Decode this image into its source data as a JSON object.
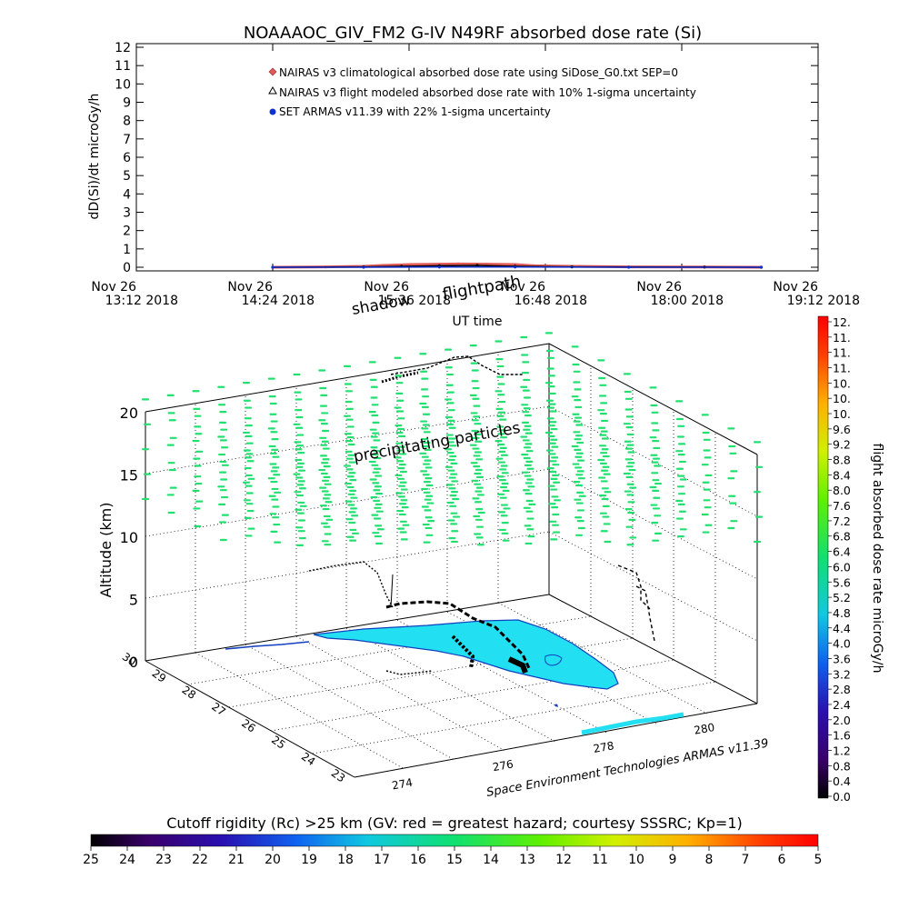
{
  "header": {
    "title": "NOAAAOC_GIV_FM2 G-IV    N49RF  absorbed dose rate (Si)"
  },
  "legend": [
    {
      "label": "NAIRAS v3 climatological absorbed dose rate using SiDose_G0.txt SEP=0",
      "symbol": "diamond",
      "color": "#e05a5a"
    },
    {
      "label": "NAIRAS v3 flight modeled absorbed dose rate with 10% 1-sigma uncertainty",
      "symbol": "triangle",
      "color": "#000000"
    },
    {
      "label": "SET ARMAS v11.39 with 22% 1-sigma uncertainty",
      "symbol": "dot",
      "color": "#1030d0"
    }
  ],
  "labels": {
    "shadow": "shadow",
    "flightpath": "flightpath",
    "precip": "precipitating particles",
    "credit": "Space Environment Technologies ARMAS v11.39",
    "rc_title": "Cutoff rigidity (Rc) >25 km (GV: red = greatest hazard; courtesy SSSRC; Kp=1)"
  },
  "chart_data": [
    {
      "type": "line",
      "title": "NOAAAOC_GIV_FM2 G-IV    N49RF  absorbed dose rate (Si)",
      "xlabel": "UT time",
      "ylabel": "dD(Si)/dt microGy/h",
      "ylim": [
        0,
        12
      ],
      "yticks": [
        0,
        1,
        2,
        3,
        4,
        5,
        6,
        7,
        8,
        9,
        10,
        11,
        12
      ],
      "xticks": [
        {
          "l1": "Nov 26",
          "l2": "13:12 2018"
        },
        {
          "l1": "Nov 26",
          "l2": "14:24 2018"
        },
        {
          "l1": "Nov 26",
          "l2": "15:36 2018"
        },
        {
          "l1": "Nov 26",
          "l2": "16:48 2018"
        },
        {
          "l1": "Nov 26",
          "l2": "18:00 2018"
        },
        {
          "l1": "Nov 26",
          "l2": "19:12 2018"
        }
      ],
      "xrange_minutes": [
        0,
        360
      ],
      "series": [
        {
          "name": "NAIRAS v3 climatological absorbed dose rate using SiDose_G0.txt SEP=0",
          "x": [
            72,
            100,
            120,
            130,
            145,
            170,
            185,
            200,
            210,
            230,
            260,
            300,
            330
          ],
          "y": [
            0,
            0.02,
            0.05,
            0.1,
            0.15,
            0.18,
            0.17,
            0.15,
            0.08,
            0.05,
            0.02,
            0.01,
            0
          ]
        },
        {
          "name": "NAIRAS v3 flight modeled absorbed dose rate with 10% 1-sigma uncertainty",
          "x": [
            72,
            120,
            140,
            160,
            180,
            200,
            230,
            300,
            330
          ],
          "y": [
            0,
            0.02,
            0.05,
            0.08,
            0.1,
            0.05,
            0.02,
            0.01,
            0
          ]
        },
        {
          "name": "SET ARMAS v11.39 with 22% 1-sigma uncertainty",
          "x": [
            72,
            120,
            160,
            200,
            260,
            330
          ],
          "y": [
            0,
            0,
            0.01,
            0.01,
            0,
            0
          ]
        }
      ]
    },
    {
      "type": "scatter",
      "title": "",
      "zlabel": "Altitude (km)",
      "zlim": [
        0,
        20
      ],
      "zticks": [
        0,
        5,
        10,
        15,
        20
      ],
      "lat_ticks": [
        "23",
        "24",
        "25",
        "26",
        "27",
        "28",
        "29",
        "30"
      ],
      "lon_ticks": [
        "274",
        "276",
        "278",
        "280"
      ],
      "precipitating_particle_altitudes_km": [
        13,
        15,
        17,
        19,
        21
      ]
    },
    {
      "type": "heatmap",
      "title": "",
      "colorbar_label": "flight absorbed dose rate microGy/h",
      "ticks": [
        "12.",
        "11.",
        "11.",
        "11.",
        "10.",
        "10.",
        "10.",
        "9.6",
        "9.2",
        "8.8",
        "8.4",
        "8.0",
        "7.6",
        "7.2",
        "6.8",
        "6.4",
        "6.0",
        "5.6",
        "5.2",
        "4.8",
        "4.4",
        "4.0",
        "3.6",
        "3.2",
        "2.8",
        "2.4",
        "2.0",
        "1.6",
        "1.2",
        "0.8",
        "0.4",
        "0.0"
      ],
      "range": [
        0,
        12
      ]
    },
    {
      "type": "heatmap",
      "title": "Cutoff rigidity (Rc) >25 km (GV: red = greatest hazard; courtesy SSSRC; Kp=1)",
      "ticks": [
        "25",
        "24",
        "23",
        "22",
        "21",
        "20",
        "19",
        "18",
        "17",
        "16",
        "15",
        "14",
        "13",
        "12",
        "11",
        "10",
        "9",
        "8",
        "7",
        "6",
        "5"
      ],
      "range": [
        25,
        5
      ]
    }
  ]
}
